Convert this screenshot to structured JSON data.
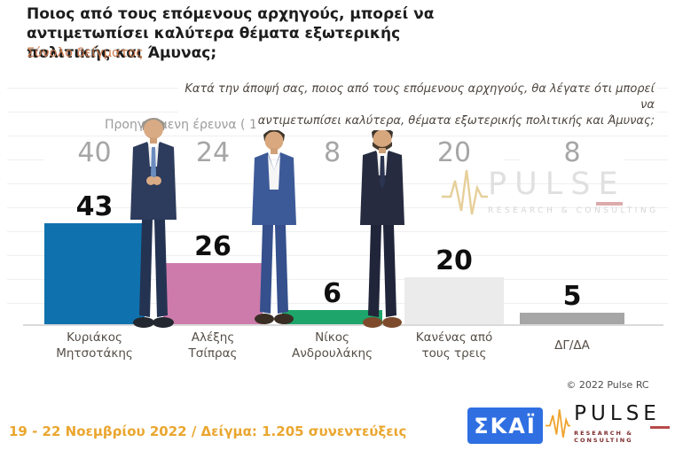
{
  "header": {
    "title": "Ποιος από τους επόμενους αρχηγούς, μπορεί να αντιμετωπίσει καλύτερα θέματα εξωτερικής πολιτικής και Άμυνας;",
    "subtitle": "Σύνολο δείγματος"
  },
  "question": {
    "line1": "Κατά την άποψή σας, ποιος  από τους επόμενους αρχηγούς, θα λέγατε ότι μπορεί να",
    "line2": "αντιμετωπίσει καλύτερα, θέματα εξωτερικής πολιτικής και Άμυνας;"
  },
  "previous_survey_label": "Προηγούμενη έρευνα  ( 11 - 13 Ιουλίου  2022 )",
  "chart_data": {
    "type": "bar",
    "categories": [
      "Κυριάκος Μητσοτάκης",
      "Αλέξης Τσίπρας",
      "Νίκος Ανδρουλάκης",
      "Κανένας από τους τρεις",
      "ΔΓ/ΔΑ"
    ],
    "series": [
      {
        "name": "19 - 22 Νοεμβρίου 2022",
        "values": [
          43,
          26,
          6,
          20,
          5
        ]
      },
      {
        "name": "Προηγούμενη έρευνα ( 11 - 13 Ιουλίου 2022 )",
        "values": [
          40,
          24,
          8,
          20,
          8
        ]
      }
    ],
    "colors": [
      "#0f72ae",
      "#cd7bab",
      "#1ea56b",
      "#ebebeb",
      "#a6a6a6"
    ],
    "title": "Ποιος από τους επόμενους αρχηγούς, μπορεί να αντιμετωπίσει καλύτερα θέματα εξωτερικής πολιτικής και Άμυνας;",
    "xlabel": "",
    "ylabel": "",
    "ylim": [
      0,
      50
    ],
    "grid": true,
    "legend": false
  },
  "watermark": {
    "name": "PULSE",
    "sub": "RESEARCH & CONSULTING"
  },
  "copyright": "© 2022 Pulse RC",
  "footer": {
    "fieldwork": "19 - 22  Νοεμβρίου  2022  /  Δείγμα:  1.205 συνεντεύξεις",
    "skai_logo_text": "ΣΚΑΪ",
    "pulse_logo_text": "PULSE",
    "pulse_logo_sub": "RESEARCH & CONSULTING"
  },
  "colors": {
    "subtitle_orange": "#cd7b4e",
    "footer_orange": "#eaa62f",
    "skai_blue": "#2f6fe2",
    "pulse_orange": "#f0a32e",
    "prev_value_gray": "#a6a6a6"
  }
}
